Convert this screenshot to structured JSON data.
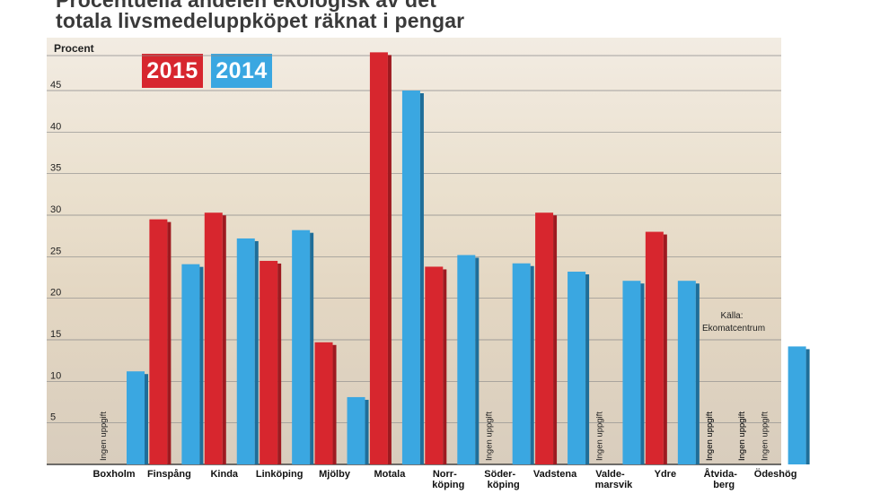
{
  "title": {
    "line1": "Procentuella andelen ekologisk av det",
    "line2": "totala livsmedeluppköpet räknat i pengar"
  },
  "source": "Källa: Ekomatcentrum",
  "chart_data": {
    "type": "bar",
    "ylabel": "Procent",
    "ylim": [
      0,
      50
    ],
    "yticks": [
      5,
      10,
      15,
      20,
      25,
      30,
      35,
      40,
      45
    ],
    "grid": true,
    "legend_placement": "top-left",
    "no_data_label": "Ingen uppgift",
    "categories": [
      [
        "Boxholm"
      ],
      [
        "Finspång"
      ],
      [
        "Kinda"
      ],
      [
        "Linköping"
      ],
      [
        "Mjölby"
      ],
      [
        "Motala"
      ],
      [
        "Norr-",
        "köping"
      ],
      [
        "Söder-",
        "köping"
      ],
      [
        "Vadstena"
      ],
      [
        "Valde-",
        "marsvik"
      ],
      [
        "Ydre"
      ],
      [
        "Åtvida-",
        "berg"
      ],
      [
        "Ödeshög"
      ]
    ],
    "series": [
      {
        "name": "2015",
        "color": "#d7262e",
        "values": [
          null,
          29.5,
          30.3,
          24.5,
          14.7,
          49.6,
          23.8,
          null,
          30.3,
          null,
          28.0,
          null,
          null
        ]
      },
      {
        "name": "2014",
        "color": "#3aa7e1",
        "values": [
          11.2,
          24.1,
          27.2,
          28.2,
          8.1,
          45.0,
          25.2,
          24.2,
          23.2,
          22.1,
          22.1,
          null,
          14.2
        ]
      }
    ]
  }
}
